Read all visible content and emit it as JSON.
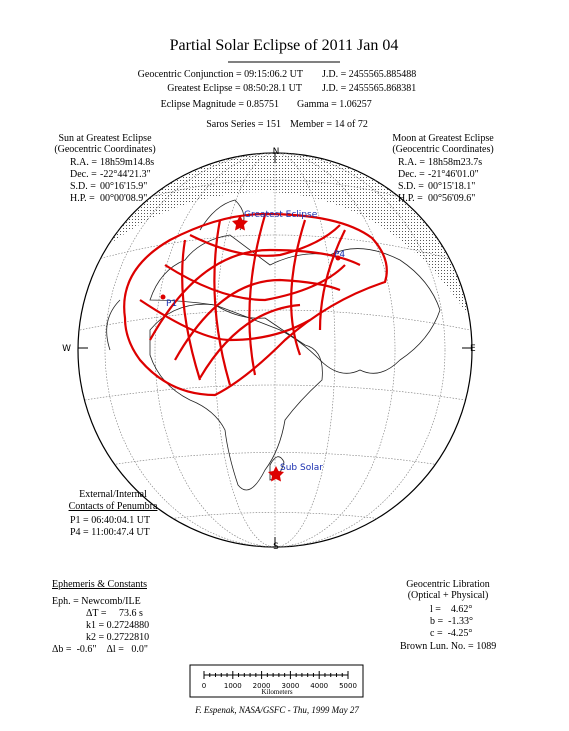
{
  "title": "Partial Solar Eclipse of 2011 Jan 04",
  "header": {
    "lines": [
      [
        "Geocentric Conjunction = 09:15:06.2 UT",
        "J.D. = 2455565.885488"
      ],
      [
        "Greatest Eclipse = 08:50:28.1 UT",
        "J.D. = 2455565.868381"
      ],
      [
        "Eclipse Magnitude = 0.85751",
        "Gamma = 1.06257"
      ],
      [
        "Saros Series = 151",
        "Member = 14 of 72"
      ]
    ]
  },
  "sun": {
    "title": "Sun at Greatest Eclipse",
    "subtitle": "(Geocentric Coordinates)",
    "rows": [
      [
        "R.A. =",
        "18h59m14.8s"
      ],
      [
        "Dec. =",
        "-22°44'21.3\""
      ],
      [
        "S.D. =",
        "00°16'15.9\""
      ],
      [
        "H.P. =",
        "00°00'08.9\""
      ]
    ]
  },
  "moon": {
    "title": "Moon at Greatest Eclipse",
    "subtitle": "(Geocentric Coordinates)",
    "rows": [
      [
        "R.A. =",
        "18h58m23.7s"
      ],
      [
        "Dec. =",
        "-21°46'01.0\""
      ],
      [
        "S.D. =",
        "00°15'18.1\""
      ],
      [
        "H.P. =",
        "00°56'09.6\""
      ]
    ]
  },
  "map": {
    "north": "N",
    "south": "S",
    "east": "E",
    "west": "W",
    "greatest": "Greatest Eclipse",
    "p1": "P1",
    "p4": "P4",
    "sub_solar": "Sub Solar"
  },
  "contacts": {
    "title": "External/Internal",
    "subtitle": "Contacts of Penumbra",
    "rows": [
      "P1 = 06:40:04.1 UT",
      "P4 = 11:00:47.4 UT"
    ]
  },
  "ephemeris": {
    "title": "Ephemeris & Constants",
    "rows": [
      "Eph. = Newcomb/ILE",
      "ΔT =     73.6 s",
      "k1 = 0.2724880",
      "k2 = 0.2722810",
      "Δb =  -0.6\"    Δl =   0.0\""
    ]
  },
  "libration": {
    "title": "Geocentric Libration",
    "subtitle": "(Optical + Physical)",
    "rows": [
      "l =    4.62°",
      "b =  -1.33°",
      "c =  -4.25°"
    ],
    "brown": "Brown Lun. No. = 1089"
  },
  "scale": {
    "ticks": [
      "0",
      "1000",
      "2000",
      "3000",
      "4000",
      "5000"
    ],
    "unit": "Kilometers"
  },
  "footer": "F. Espenak, NASA/GSFC - Thu, 1999 May 27"
}
